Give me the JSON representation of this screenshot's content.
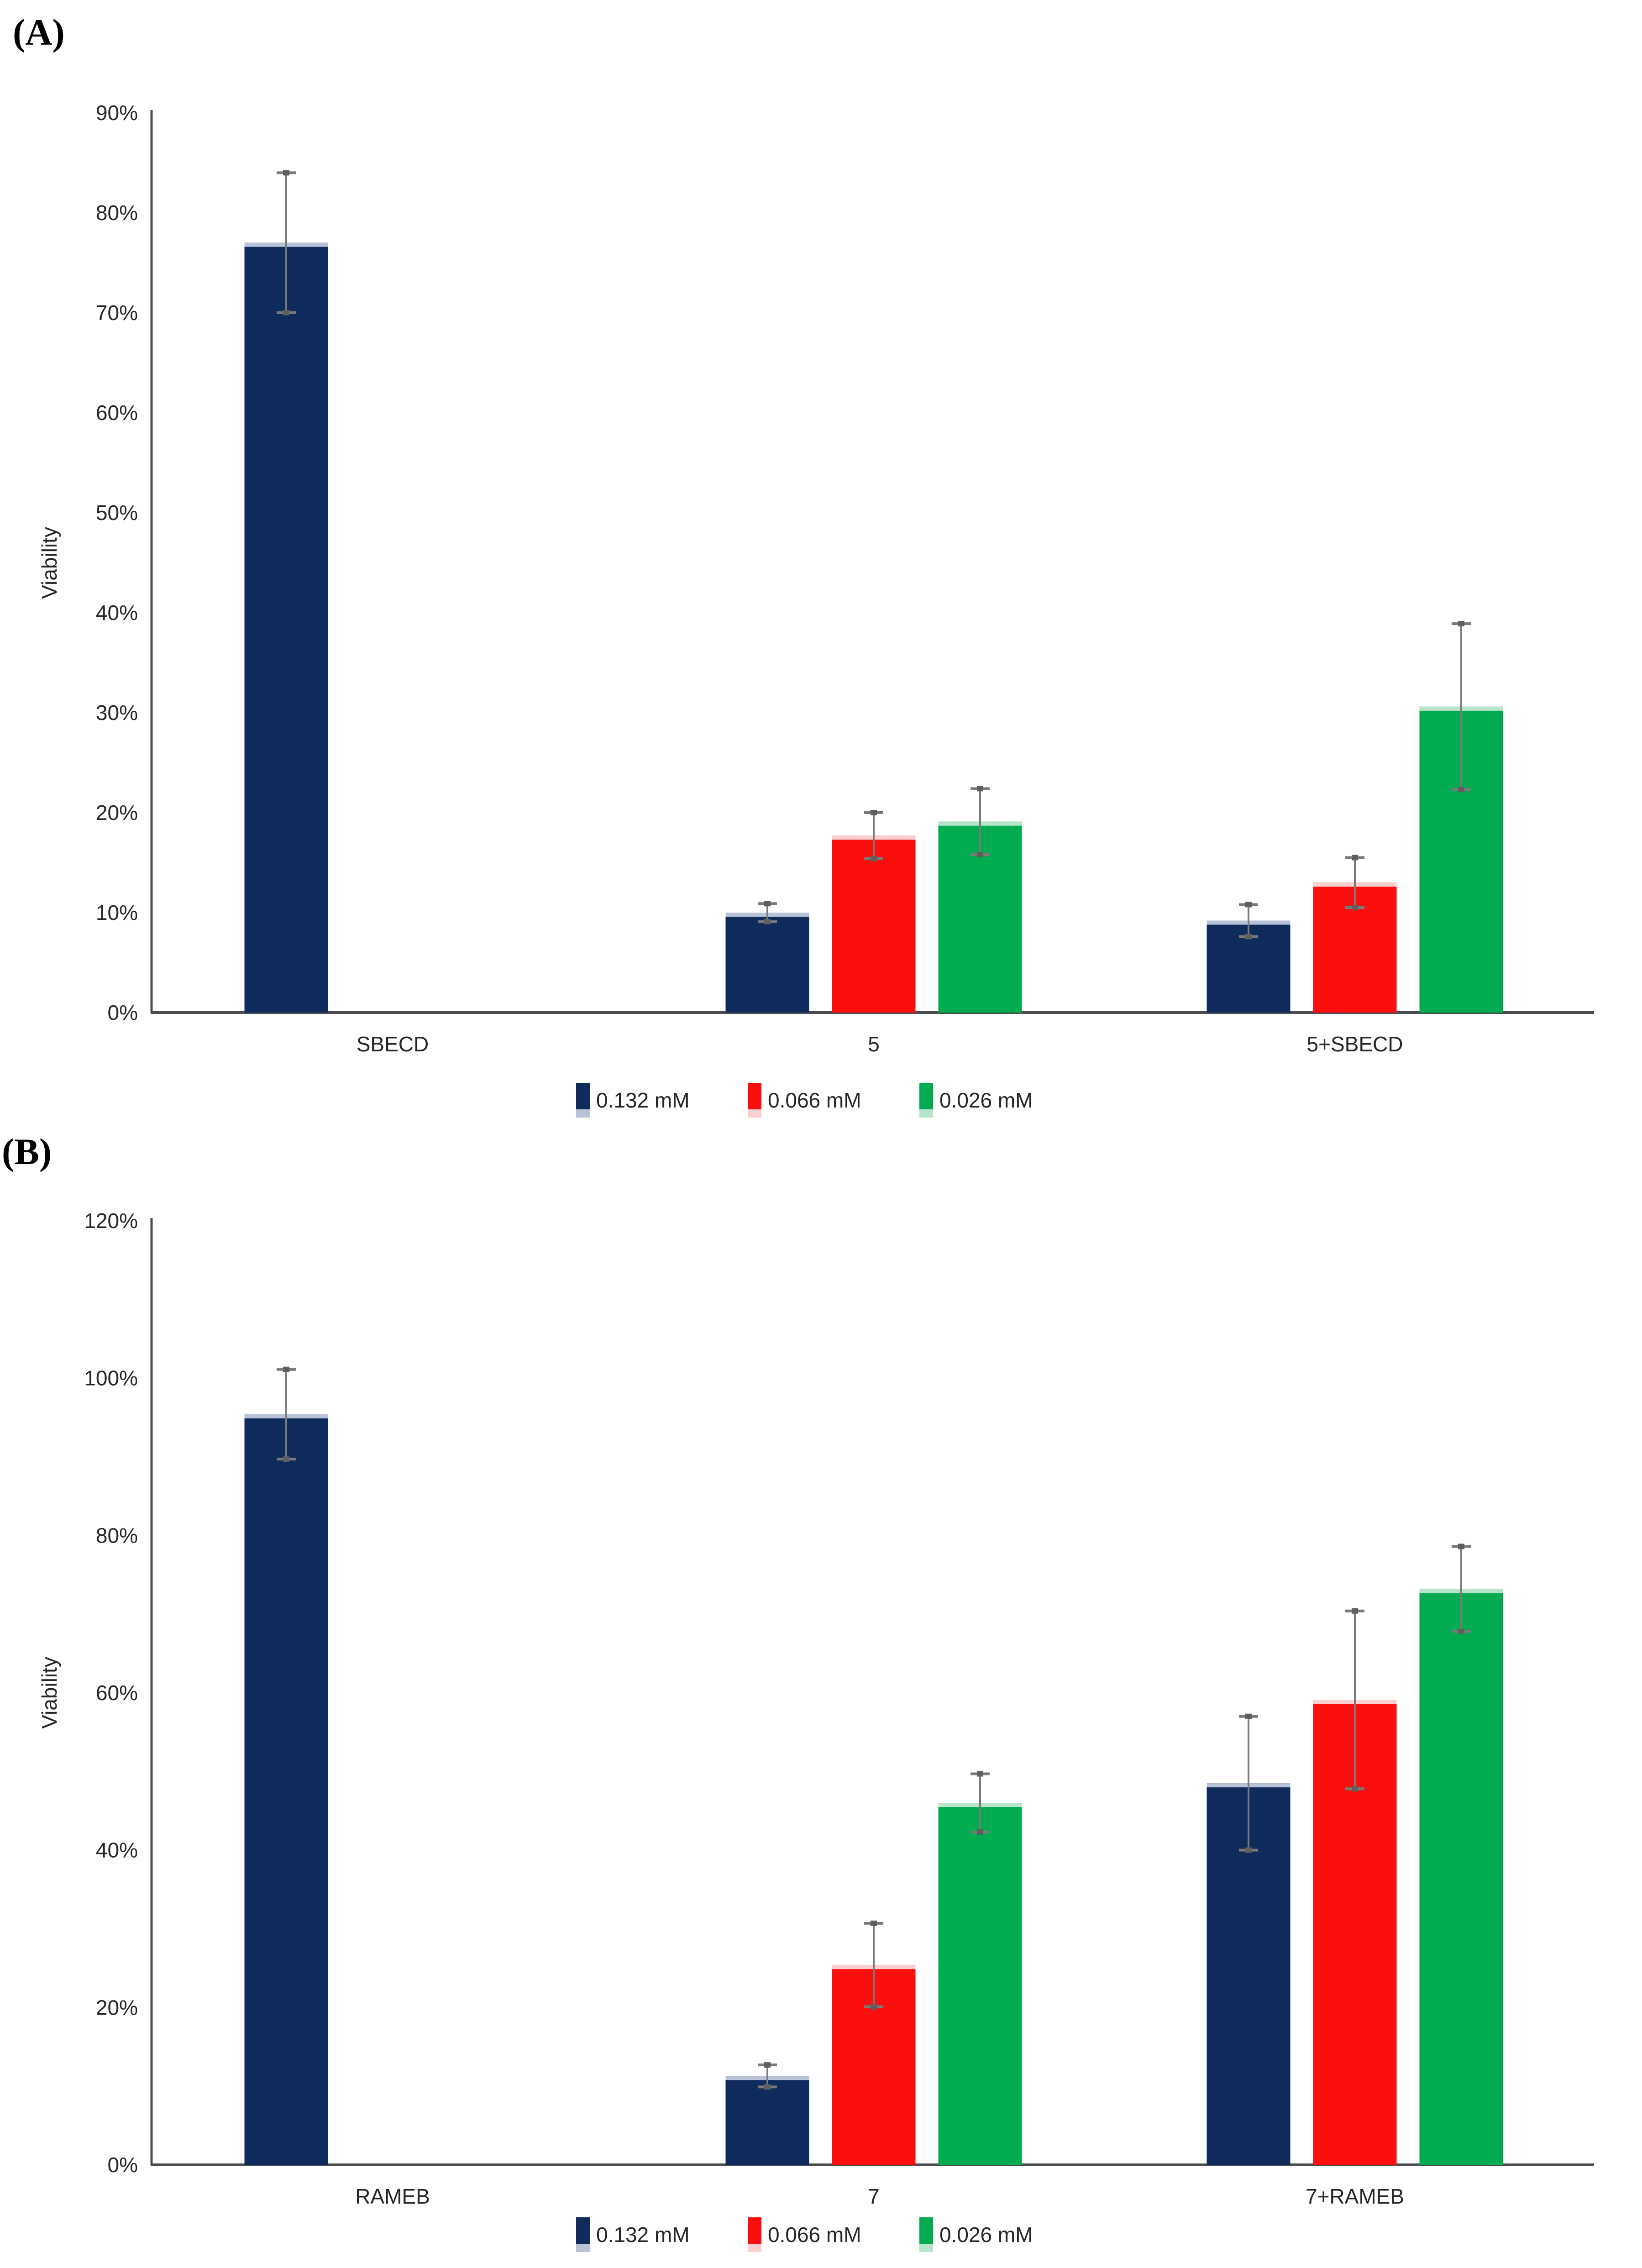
{
  "figure": {
    "background": "#ffffff",
    "panels": [
      {
        "label": "(A)"
      },
      {
        "label": "(B)"
      }
    ]
  },
  "colors": {
    "navy": "#0F2B5C",
    "red": "#FA0E0E",
    "green": "#00AC4F",
    "navy_edge": "#B9C3D8",
    "red_edge": "#F9CFCF",
    "green_edge": "#B7E4CA",
    "axis": "#4D4D4D",
    "error_bar": "#7A7A7A",
    "error_cap_dot": "#5F5F5F",
    "text": "#262626"
  },
  "chart_data": [
    {
      "type": "bar",
      "panel_label": "(A)",
      "title": "",
      "xlabel": "",
      "ylabel": "Viability",
      "ylim": [
        0,
        90
      ],
      "ytick_step": 10,
      "ytick_labels": [
        "0%",
        "10%",
        "20%",
        "30%",
        "40%",
        "50%",
        "60%",
        "70%",
        "80%",
        "90%"
      ],
      "grid": false,
      "legend_position": "bottom",
      "categories": [
        "SBECD",
        "5",
        "5+SBECD"
      ],
      "series": [
        {
          "name": "0.132 mM",
          "color_key": "navy",
          "values": [
            77.0,
            10.0,
            9.2
          ],
          "errors": [
            7.0,
            0.9,
            1.6
          ]
        },
        {
          "name": "0.066 mM",
          "color_key": "red",
          "values": [
            null,
            17.7,
            13.0
          ],
          "errors": [
            null,
            2.3,
            2.5
          ]
        },
        {
          "name": "0.026 mM",
          "color_key": "green",
          "values": [
            null,
            19.1,
            30.6
          ],
          "errors": [
            null,
            3.3,
            8.3
          ]
        }
      ]
    },
    {
      "type": "bar",
      "panel_label": "(B)",
      "title": "",
      "xlabel": "",
      "ylabel": "Viability",
      "ylim": [
        0,
        120
      ],
      "ytick_step": 20,
      "ytick_labels": [
        "0%",
        "20%",
        "40%",
        "60%",
        "80%",
        "100%",
        "120%"
      ],
      "grid": false,
      "legend_position": "bottom",
      "categories": [
        "RAMEB",
        "7",
        "7+RAMEB"
      ],
      "series": [
        {
          "name": "0.132 mM",
          "color_key": "navy",
          "values": [
            95.4,
            11.3,
            48.5
          ],
          "errors": [
            5.7,
            1.4,
            8.5
          ]
        },
        {
          "name": "0.066 mM",
          "color_key": "red",
          "values": [
            null,
            25.4,
            59.1
          ],
          "errors": [
            null,
            5.3,
            11.3
          ]
        },
        {
          "name": "0.026 mM",
          "color_key": "green",
          "values": [
            null,
            46.0,
            73.2
          ],
          "errors": [
            null,
            3.7,
            5.4
          ]
        }
      ]
    }
  ]
}
